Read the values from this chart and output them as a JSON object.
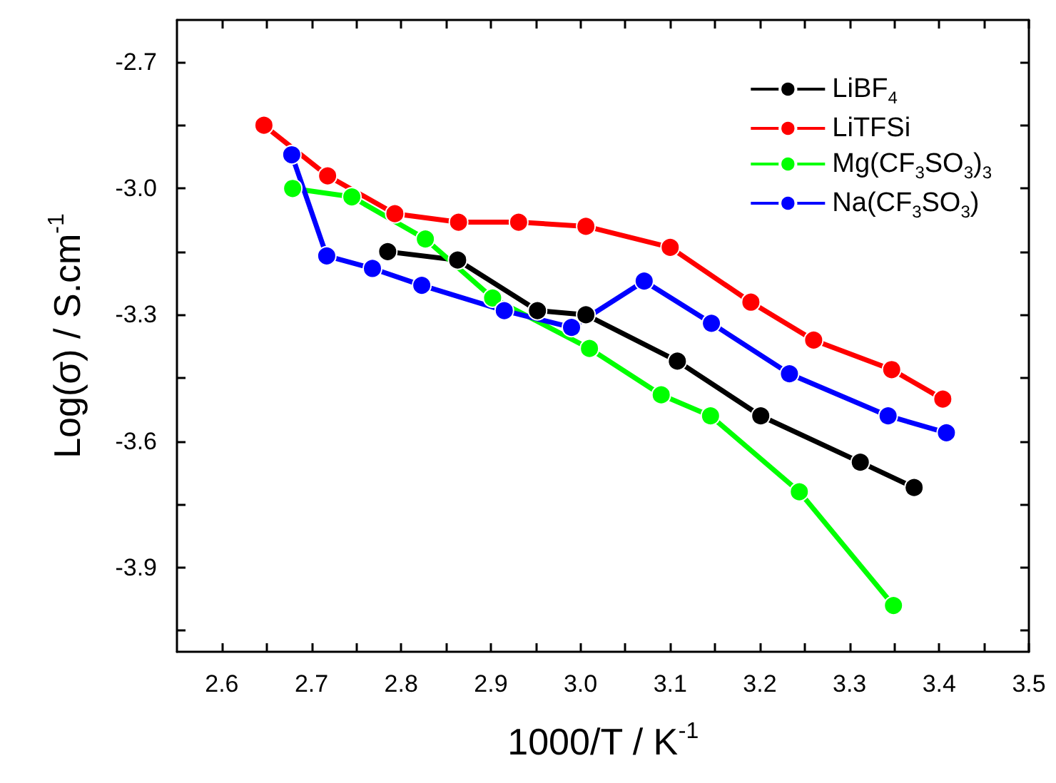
{
  "chart_data": {
    "type": "line",
    "xlabel": "1000/T / K$^{-1}$",
    "ylabel": "Log(σ) / S.cm$^{-1}$",
    "xlim": [
      2.55,
      3.5
    ],
    "ylim": [
      -4.1,
      -2.6
    ],
    "xticks": [
      2.6,
      {
        "value": 2.65,
        "label": null
      },
      2.7,
      {
        "value": 2.75,
        "label": null
      },
      2.8,
      {
        "value": 2.85,
        "label": null
      },
      2.9,
      {
        "value": 2.95,
        "label": null
      },
      {
        "value": 3,
        "label": "3.0"
      },
      {
        "value": 3.05,
        "label": null
      },
      3.1,
      {
        "value": 3.15,
        "label": null
      },
      3.2,
      {
        "value": 3.25,
        "label": null
      },
      3.3,
      {
        "value": 3.35,
        "label": null
      },
      3.4,
      {
        "value": 3.45,
        "label": null
      },
      3.5
    ],
    "yticks": [
      -2.7,
      {
        "value": -2.85,
        "label": null
      },
      {
        "value": -3,
        "label": "-3.0"
      },
      {
        "value": -3.15,
        "label": null
      },
      -3.3,
      {
        "value": -3.45,
        "label": null
      },
      -3.6,
      {
        "value": -3.75,
        "label": null
      },
      -3.9,
      {
        "value": -4.05,
        "label": null
      }
    ],
    "grid": false,
    "legend": "top right",
    "marker": "circle",
    "line_style": "solid",
    "series": [
      {
        "name": "LiBF$_{4}$",
        "color": "#000000",
        "x": [
          2.785,
          2.863,
          2.952,
          3.006,
          3.108,
          3.201,
          3.312,
          3.372
        ],
        "values": [
          -3.15,
          -3.17,
          -3.29,
          -3.3,
          -3.41,
          -3.54,
          -3.65,
          -3.71
        ]
      },
      {
        "name": "LiTFSi",
        "color": "#ff0000",
        "x": [
          2.647,
          2.718,
          2.793,
          2.864,
          2.931,
          3.006,
          3.1,
          3.19,
          3.26,
          3.347,
          3.404
        ],
        "values": [
          -2.85,
          -2.97,
          -3.06,
          -3.08,
          -3.08,
          -3.09,
          -3.14,
          -3.27,
          -3.36,
          -3.43,
          -3.5
        ]
      },
      {
        "name": "Mg(CF$_{3}$SO$_{3}$)$_{3}$",
        "color": "#00ff00",
        "x": [
          2.679,
          2.745,
          2.827,
          2.902,
          3.01,
          3.09,
          3.145,
          3.244,
          3.349
        ],
        "values": [
          -3.0,
          -3.02,
          -3.12,
          -3.26,
          -3.38,
          -3.49,
          -3.54,
          -3.72,
          -3.99
        ]
      },
      {
        "name": "Na(CF$_{3}$SO$_{3}$)",
        "color": "#0000ff",
        "x": [
          2.678,
          2.717,
          2.768,
          2.823,
          2.915,
          2.99,
          3.071,
          3.146,
          3.233,
          3.343,
          3.408
        ],
        "values": [
          -2.92,
          -3.16,
          -3.19,
          -3.23,
          -3.29,
          -3.33,
          -3.22,
          -3.32,
          -3.44,
          -3.54,
          -3.58
        ]
      }
    ]
  }
}
